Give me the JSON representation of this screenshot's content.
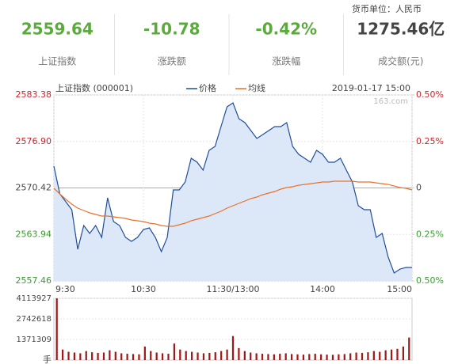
{
  "header": {
    "currency_unit": "货币单位：人民币",
    "stats": [
      {
        "value": "2559.64",
        "label": "上证指数"
      },
      {
        "value": "-10.78",
        "label": "涨跌额"
      },
      {
        "value": "-0.42%",
        "label": "涨跌幅"
      },
      {
        "value": "1275.46亿",
        "label": "成交额(元)"
      }
    ]
  },
  "chart_data": [
    {
      "type": "line",
      "title": "上证指数 (000001)",
      "timestamp": "2019-01-17 15:00",
      "watermark": "163.com",
      "x": [
        0,
        4,
        8,
        12,
        16,
        20,
        24,
        28,
        32,
        36,
        40,
        44,
        48,
        52,
        56,
        60,
        64,
        68,
        72,
        76,
        80,
        84,
        88,
        92,
        96,
        100,
        104,
        108,
        112,
        116,
        120,
        124,
        128,
        132,
        136,
        140,
        144,
        148,
        152,
        156,
        160,
        164,
        168,
        172,
        176,
        180,
        184,
        188,
        192,
        196,
        200,
        204,
        208,
        212,
        216,
        220,
        224,
        228,
        232,
        236,
        240
      ],
      "xlim": [
        0,
        240
      ],
      "xticks": [
        {
          "value": 0,
          "label": "9:30"
        },
        {
          "value": 60,
          "label": "10:30"
        },
        {
          "value": 120,
          "label": "11:30/13:00"
        },
        {
          "value": 180,
          "label": "14:00"
        },
        {
          "value": 240,
          "label": "15:00"
        }
      ],
      "ylim": [
        2557.46,
        2583.38
      ],
      "yticks": [
        2583.38,
        {
          "value": 2576.9,
          "label": "2576.90"
        },
        2570.42,
        2563.94,
        2557.46
      ],
      "y2lim": [
        -0.5,
        0.5
      ],
      "y2ticks": [
        {
          "value": 0.5,
          "label": "0.50%"
        },
        {
          "value": 0.25,
          "label": "0.25%"
        },
        0,
        {
          "value": -0.25,
          "label": "0.25%"
        },
        {
          "value": -0.5,
          "label": "0.50%"
        }
      ],
      "grid": true,
      "series": [
        {
          "name": "价格",
          "color": "#1f4e9a",
          "fill": "#dce8f8",
          "values": [
            2573.45,
            2569.59,
            2568.49,
            2567.39,
            2561.87,
            2565.18,
            2564.08,
            2565.18,
            2563.53,
            2569.04,
            2565.73,
            2565.18,
            2563.53,
            2562.97,
            2563.53,
            2564.63,
            2564.85,
            2563.53,
            2561.54,
            2563.53,
            2570.14,
            2570.14,
            2571.25,
            2574.56,
            2574.0,
            2572.9,
            2575.66,
            2576.21,
            2578.97,
            2581.73,
            2582.28,
            2580.07,
            2579.52,
            2578.42,
            2577.31,
            2577.86,
            2578.42,
            2578.97,
            2578.97,
            2579.52,
            2576.21,
            2575.11,
            2574.56,
            2574.0,
            2575.66,
            2575.11,
            2574.0,
            2574.0,
            2574.56,
            2572.9,
            2571.25,
            2567.94,
            2567.39,
            2567.39,
            2563.53,
            2564.08,
            2560.77,
            2558.56,
            2559.11,
            2559.33,
            2559.33
          ]
        },
        {
          "name": "均线",
          "color": "#e8722c",
          "values": [
            2570.36,
            2569.59,
            2568.82,
            2568.16,
            2567.61,
            2567.28,
            2566.95,
            2566.73,
            2566.5,
            2566.5,
            2566.39,
            2566.28,
            2566.17,
            2565.95,
            2565.84,
            2565.73,
            2565.51,
            2565.4,
            2565.18,
            2565.07,
            2565.07,
            2565.29,
            2565.51,
            2565.84,
            2566.06,
            2566.28,
            2566.5,
            2566.83,
            2567.17,
            2567.61,
            2567.94,
            2568.27,
            2568.6,
            2568.93,
            2569.15,
            2569.48,
            2569.7,
            2569.92,
            2570.25,
            2570.47,
            2570.58,
            2570.8,
            2570.91,
            2571.02,
            2571.13,
            2571.25,
            2571.25,
            2571.36,
            2571.36,
            2571.36,
            2571.36,
            2571.25,
            2571.25,
            2571.25,
            2571.13,
            2571.02,
            2570.91,
            2570.69,
            2570.47,
            2570.36,
            2570.14
          ]
        }
      ]
    },
    {
      "type": "bar",
      "y_label": "手",
      "color": "#a01818",
      "ylim": [
        0,
        4113927
      ],
      "yticks": [
        4113927,
        2742618,
        1371309
      ],
      "values": [
        4113927,
        700000,
        550000,
        500000,
        450000,
        600000,
        520000,
        480000,
        500000,
        650000,
        550000,
        450000,
        420000,
        400000,
        380000,
        900000,
        600000,
        500000,
        450000,
        420000,
        1100000,
        700000,
        600000,
        550000,
        500000,
        450000,
        480000,
        520000,
        600000,
        700000,
        1600000,
        800000,
        600000,
        500000,
        450000,
        420000,
        400000,
        380000,
        420000,
        450000,
        400000,
        380000,
        360000,
        400000,
        420000,
        380000,
        360000,
        350000,
        380000,
        400000,
        450000,
        500000,
        480000,
        520000,
        600000,
        550000,
        650000,
        700000,
        750000,
        900000,
        1500000
      ]
    }
  ]
}
